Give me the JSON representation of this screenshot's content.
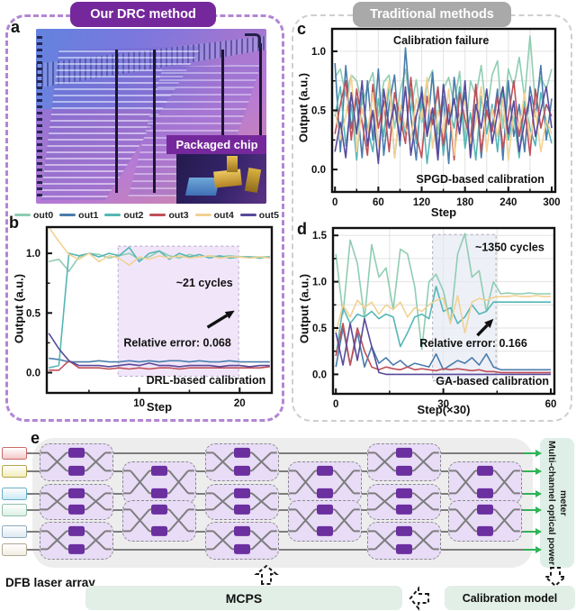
{
  "header": {
    "left_badge": "Our DRC method",
    "right_badge": "Traditional methods"
  },
  "panel_labels": {
    "a": "a",
    "b": "b",
    "c": "c",
    "d": "d",
    "e": "e"
  },
  "photo": {
    "caption": "Packaged chip"
  },
  "legend": {
    "items": [
      {
        "label": "out0",
        "color": "#8FCDB2"
      },
      {
        "label": "out1",
        "color": "#4A7CAC"
      },
      {
        "label": "out2",
        "color": "#55B6B6"
      },
      {
        "label": "out3",
        "color": "#C04F58"
      },
      {
        "label": "out4",
        "color": "#F2D193"
      },
      {
        "label": "out5",
        "color": "#584A9B"
      }
    ]
  },
  "chart_data": [
    {
      "id": "b",
      "type": "line",
      "xlabel": "Step",
      "ylabel": "Output (a.u.)",
      "xlim": [
        0.8,
        23.2
      ],
      "ylim": [
        -0.17,
        1.22
      ],
      "xticks": [
        10,
        20
      ],
      "xminor": [
        5,
        15
      ],
      "yticks": [
        0.0,
        0.5,
        1.0
      ],
      "yminor": [
        0.25,
        0.75
      ],
      "grid_x": [],
      "grid_y": [],
      "shade": {
        "x0": 7.9,
        "x1": 19.9,
        "y0": -0.03,
        "y1": 1.06,
        "fill": "rgba(233,217,246,0.65)",
        "stroke": "#B5A8C5"
      },
      "x": [
        1,
        2,
        3,
        4,
        5,
        6,
        7,
        8,
        9,
        10,
        11,
        12,
        13,
        14,
        15,
        16,
        17,
        18,
        19,
        20,
        21,
        22,
        23
      ],
      "series": [
        {
          "name": "out0",
          "color": "#8FCDB2",
          "values": [
            0.93,
            0.95,
            0.85,
            0.97,
            1.0,
            0.99,
            0.96,
            0.98,
            1.0,
            0.95,
            0.97,
            1.02,
            0.98,
            0.96,
            0.99,
            0.97,
            0.98,
            0.97,
            0.98,
            0.97,
            0.97,
            0.97,
            0.97
          ]
        },
        {
          "name": "out1",
          "color": "#4A7CAC",
          "values": [
            0.12,
            0.11,
            0.09,
            0.09,
            0.09,
            0.1,
            0.09,
            0.09,
            0.1,
            0.09,
            0.1,
            0.09,
            0.1,
            0.1,
            0.09,
            0.1,
            0.09,
            0.09,
            0.1,
            0.09,
            0.09,
            0.09,
            0.09
          ]
        },
        {
          "name": "out2",
          "color": "#55B6B6",
          "values": [
            0.04,
            0.06,
            1.0,
            0.98,
            1.0,
            0.97,
            1.0,
            0.98,
            1.05,
            0.93,
            1.0,
            1.02,
            0.95,
            1.0,
            0.97,
            0.99,
            0.96,
            0.98,
            0.96,
            0.97,
            0.97,
            0.96,
            0.97
          ]
        },
        {
          "name": "out3",
          "color": "#C04F58",
          "values": [
            0.02,
            0.02,
            0.1,
            0.04,
            0.04,
            0.04,
            0.03,
            0.04,
            0.03,
            0.04,
            0.03,
            0.04,
            0.04,
            0.03,
            0.04,
            0.04,
            0.04,
            0.04,
            0.04,
            0.04,
            0.04,
            0.04,
            0.05
          ]
        },
        {
          "name": "out4",
          "color": "#F2D193",
          "values": [
            1.22,
            1.1,
            0.99,
            0.95,
            1.0,
            0.93,
            0.98,
            0.96,
            0.9,
            0.97,
            0.95,
            0.98,
            0.96,
            0.98,
            0.96,
            0.97,
            0.98,
            0.96,
            0.97,
            0.97,
            0.96,
            0.97,
            0.96
          ]
        },
        {
          "name": "out5",
          "color": "#584A9B",
          "values": [
            0.33,
            0.2,
            0.1,
            0.06,
            0.06,
            0.06,
            0.05,
            0.06,
            0.07,
            0.06,
            0.08,
            0.06,
            0.06,
            0.05,
            0.06,
            0.06,
            0.06,
            0.05,
            0.06,
            0.06,
            0.05,
            0.06,
            0.06
          ]
        }
      ],
      "annotations": [
        {
          "type": "text",
          "x": 16.5,
          "y": 0.72,
          "text": "~21 cycles",
          "anchor": "middle",
          "size": 12.5
        },
        {
          "type": "text",
          "x": 13.8,
          "y": 0.22,
          "text": "Relative error: 0.068",
          "anchor": "middle",
          "size": 12.5
        },
        {
          "type": "arrow",
          "x1": 16.8,
          "y1": 0.38,
          "x2": 19.5,
          "y2": 0.52
        },
        {
          "type": "text",
          "x": 22.6,
          "y": -0.095,
          "text": "DRL-based calibration",
          "anchor": "end",
          "size": 12.5
        }
      ]
    },
    {
      "id": "c",
      "type": "line",
      "xlabel": "Step",
      "ylabel": "Output (a.u.)",
      "xlim": [
        -4,
        305
      ],
      "ylim": [
        -0.19,
        1.19
      ],
      "xticks": [
        0,
        60,
        120,
        180,
        240,
        300
      ],
      "xminor": [
        30,
        90,
        150,
        210,
        270
      ],
      "yticks": [
        0.0,
        0.5,
        1.0
      ],
      "yminor": [
        0.25,
        0.75
      ],
      "grid_x": [
        30,
        60,
        90,
        120,
        150,
        180,
        210,
        240,
        270
      ],
      "grid_y": [
        0.25,
        0.5,
        0.75,
        1.0
      ],
      "shade": null,
      "x": [
        0,
        7.5,
        15,
        22.5,
        30,
        37.5,
        45,
        52.5,
        60,
        67.5,
        75,
        82.5,
        90,
        97.5,
        105,
        112.5,
        120,
        127.5,
        135,
        142.5,
        150,
        157.5,
        165,
        172.5,
        180,
        187.5,
        195,
        202.5,
        210,
        217.5,
        225,
        232.5,
        240,
        247.5,
        255,
        262.5,
        270,
        277.5,
        285,
        292.5,
        300
      ],
      "series": [
        {
          "name": "out0",
          "color": "#8FCDB2",
          "values": [
            0.78,
            0.85,
            0.62,
            0.8,
            0.75,
            0.55,
            0.7,
            0.82,
            0.45,
            0.74,
            0.8,
            0.35,
            0.65,
            0.85,
            0.5,
            0.76,
            0.4,
            0.72,
            0.84,
            0.3,
            0.68,
            0.78,
            0.55,
            0.83,
            0.25,
            0.75,
            0.62,
            0.88,
            0.45,
            0.8,
            0.92,
            0.35,
            0.85,
            0.7,
            0.95,
            0.6,
            1.13,
            0.55,
            0.78,
            0.68,
            0.85
          ]
        },
        {
          "name": "out1",
          "color": "#4A7CAC",
          "values": [
            0.9,
            0.15,
            0.88,
            0.35,
            0.6,
            0.1,
            0.75,
            0.25,
            0.85,
            0.12,
            0.55,
            0.8,
            0.2,
            1.03,
            0.45,
            0.08,
            0.7,
            0.3,
            0.82,
            0.15,
            0.62,
            0.05,
            0.78,
            0.4,
            0.65,
            0.18,
            0.72,
            0.1,
            0.58,
            0.35,
            0.68,
            0.08,
            0.75,
            0.28,
            0.55,
            0.15,
            0.7,
            0.45,
            0.88,
            0.25,
            0.6
          ]
        },
        {
          "name": "out2",
          "color": "#55B6B6",
          "values": [
            0.45,
            0.7,
            0.2,
            0.55,
            0.08,
            0.65,
            0.35,
            0.15,
            0.6,
            0.28,
            0.72,
            0.1,
            0.5,
            0.3,
            0.68,
            0.22,
            0.58,
            0.05,
            0.45,
            0.65,
            0.12,
            0.52,
            0.35,
            0.7,
            0.18,
            0.48,
            0.08,
            0.62,
            0.3,
            0.55,
            0.15,
            0.65,
            0.25,
            0.45,
            0.1,
            0.58,
            0.35,
            0.2,
            0.65,
            0.4,
            0.22
          ]
        },
        {
          "name": "out3",
          "color": "#C04F58",
          "values": [
            0.3,
            0.55,
            0.75,
            0.25,
            0.68,
            0.4,
            0.12,
            0.72,
            0.35,
            0.58,
            0.15,
            0.65,
            0.45,
            0.22,
            0.78,
            0.3,
            0.1,
            0.62,
            0.38,
            0.7,
            0.2,
            0.55,
            0.08,
            0.65,
            0.42,
            0.25,
            0.72,
            0.15,
            0.5,
            0.32,
            0.62,
            0.18,
            0.45,
            0.75,
            0.28,
            0.52,
            0.12,
            0.68,
            0.35,
            0.55,
            0.45
          ]
        },
        {
          "name": "out4",
          "color": "#F2D193",
          "values": [
            0.5,
            0.25,
            0.45,
            0.8,
            0.15,
            0.52,
            0.3,
            0.65,
            0.2,
            0.48,
            0.75,
            0.1,
            0.55,
            0.35,
            0.25,
            0.6,
            0.42,
            0.78,
            0.18,
            0.5,
            0.3,
            0.68,
            0.12,
            0.45,
            0.58,
            0.22,
            0.4,
            0.7,
            0.15,
            0.52,
            0.28,
            0.6,
            0.08,
            0.48,
            0.35,
            0.65,
            0.25,
            0.5,
            0.15,
            0.42,
            0.3
          ]
        },
        {
          "name": "out5",
          "color": "#584A9B",
          "values": [
            0.15,
            0.4,
            0.1,
            0.65,
            0.3,
            0.75,
            0.2,
            0.5,
            0.05,
            0.68,
            0.35,
            0.55,
            0.25,
            0.7,
            0.12,
            0.45,
            0.65,
            0.28,
            0.52,
            0.08,
            0.72,
            0.38,
            0.6,
            0.3,
            0.75,
            0.1,
            0.55,
            0.35,
            0.68,
            0.22,
            0.48,
            0.7,
            0.3,
            0.58,
            0.15,
            0.4,
            0.62,
            0.28,
            0.5,
            0.7,
            0.35
          ]
        }
      ],
      "annotations": [
        {
          "type": "text",
          "x": 147,
          "y": 1.06,
          "text": "Calibration failure",
          "anchor": "middle",
          "size": 12.5
        },
        {
          "type": "text",
          "x": 290,
          "y": -0.115,
          "text": "SPGD-based calibration",
          "anchor": "end",
          "size": 12.5
        }
      ]
    },
    {
      "id": "d",
      "type": "line",
      "xlabel": "Step(×30)",
      "ylabel": "Output (a.u.)",
      "xlim": [
        -0.8,
        61
      ],
      "ylim": [
        -0.21,
        1.58
      ],
      "xticks": [
        0,
        30,
        60
      ],
      "xminor": [
        15,
        45
      ],
      "yticks": [
        0.0,
        0.5,
        1.0,
        1.5
      ],
      "yminor": [
        0.25,
        0.75,
        1.25
      ],
      "grid_x": [
        15,
        30,
        45
      ],
      "grid_y": [
        0.25,
        0.5,
        0.75,
        1.0,
        1.25,
        1.5
      ],
      "shade": {
        "x0": 27,
        "x1": 44.7,
        "y0": -0.07,
        "y1": 1.51,
        "fill": "rgba(231,234,244,0.70)",
        "stroke": "#ADADB8"
      },
      "x": [
        0,
        2,
        4,
        6,
        8,
        10,
        12,
        14,
        16,
        18,
        20,
        22,
        24,
        26,
        28,
        30,
        32,
        34,
        36,
        38,
        40,
        42,
        44,
        46,
        48,
        50,
        52,
        54,
        56,
        58,
        60
      ],
      "series": [
        {
          "name": "out0",
          "color": "#8FCDB2",
          "values": [
            1.3,
            0.65,
            1.45,
            1.2,
            0.6,
            1.4,
            1.05,
            1.15,
            0.7,
            1.35,
            1.3,
            0.95,
            0.27,
            1.0,
            1.08,
            0.9,
            0.55,
            1.3,
            1.52,
            1.05,
            1.12,
            0.68,
            1.0,
            0.87,
            0.88,
            0.87,
            0.87,
            0.88,
            0.87,
            0.87,
            0.87
          ]
        },
        {
          "name": "out1",
          "color": "#4A7CAC",
          "values": [
            0.08,
            0.5,
            0.1,
            0.45,
            0.08,
            0.3,
            0.12,
            0.18,
            0.1,
            0.15,
            0.08,
            0.12,
            0.1,
            0.08,
            0.22,
            0.05,
            0.1,
            0.15,
            0.12,
            0.18,
            0.1,
            0.22,
            0.08,
            0.05,
            0.05,
            0.05,
            0.05,
            0.05,
            0.05,
            0.05,
            0.05
          ]
        },
        {
          "name": "out2",
          "color": "#55B6B6",
          "values": [
            0.2,
            0.72,
            0.55,
            0.65,
            0.62,
            0.68,
            0.6,
            0.65,
            0.62,
            0.3,
            0.45,
            0.62,
            0.65,
            0.6,
            0.95,
            0.68,
            0.72,
            0.55,
            0.62,
            0.75,
            0.65,
            0.68,
            0.78,
            0.78,
            0.78,
            0.78,
            0.78,
            0.78,
            0.78,
            0.78,
            0.78
          ]
        },
        {
          "name": "out3",
          "color": "#C04F58",
          "values": [
            0.2,
            0.55,
            0.1,
            0.5,
            0.25,
            0.08,
            0.05,
            0.08,
            0.06,
            0.05,
            0.08,
            0.05,
            0.06,
            0.05,
            0.04,
            0.06,
            0.05,
            0.06,
            0.05,
            0.04,
            0.05,
            0.03,
            0.03,
            0.02,
            0.02,
            0.02,
            0.02,
            0.02,
            0.02,
            0.02,
            0.02
          ]
        },
        {
          "name": "out4",
          "color": "#F2D193",
          "values": [
            0.45,
            0.75,
            0.62,
            0.8,
            0.72,
            0.78,
            0.65,
            0.75,
            0.7,
            0.78,
            0.62,
            0.72,
            0.68,
            0.75,
            0.8,
            0.82,
            0.55,
            0.85,
            0.45,
            0.78,
            0.82,
            0.8,
            0.83,
            0.84,
            0.84,
            0.85,
            0.84,
            0.84,
            0.85,
            0.84,
            0.84
          ]
        },
        {
          "name": "out5",
          "color": "#584A9B",
          "values": [
            0.45,
            0.1,
            0.55,
            0.15,
            0.6,
            0.3,
            0.02,
            0.0,
            0.0,
            0.0,
            0.0,
            0.0,
            0.0,
            0.0,
            0.0,
            0.0,
            0.0,
            0.0,
            0.0,
            0.0,
            0.0,
            0.0,
            0.0,
            0.0,
            0.0,
            0.0,
            0.0,
            0.0,
            0.0,
            0.0,
            0.0
          ]
        }
      ],
      "annotations": [
        {
          "type": "text",
          "x": 58.2,
          "y": 1.33,
          "text": "~1350 cycles",
          "anchor": "end",
          "size": 12.5
        },
        {
          "type": "text",
          "x": 38.4,
          "y": 0.295,
          "text": "Relative error: 0.166",
          "anchor": "middle",
          "size": 12.5
        },
        {
          "type": "arrow",
          "x1": 39.5,
          "y1": 0.42,
          "x2": 44.0,
          "y2": 0.6
        },
        {
          "type": "text",
          "x": 59.5,
          "y": -0.115,
          "text": "GA-based calibration",
          "anchor": "end",
          "size": 12.5
        }
      ]
    }
  ],
  "schematic": {
    "dfb_label": "DFB laser array",
    "mcps_label": "MCPS",
    "calibration_label": "Calibration model",
    "power_meter_label": "Multi-channel optical power meter",
    "arrow_color": "#2EB456",
    "waveguide_color": "#7D7D7D",
    "phase_shifter_color": "#6B2FA0",
    "columns": [
      3,
      2,
      3,
      2,
      3,
      2
    ],
    "inputs": [
      {
        "fill": "#F4C9C9",
        "border": "#C96A6A"
      },
      {
        "fill": "#F2ECBA",
        "border": "#B3A44E"
      },
      {
        "fill": "#C9E9F4",
        "border": "#6AAEC9"
      },
      {
        "fill": "#DCEFE5",
        "border": "#8FBFA8"
      },
      {
        "fill": "#DDE9F2",
        "border": "#8FA8BF"
      },
      {
        "fill": "#F1EDE1",
        "border": "#B0A894"
      }
    ]
  }
}
